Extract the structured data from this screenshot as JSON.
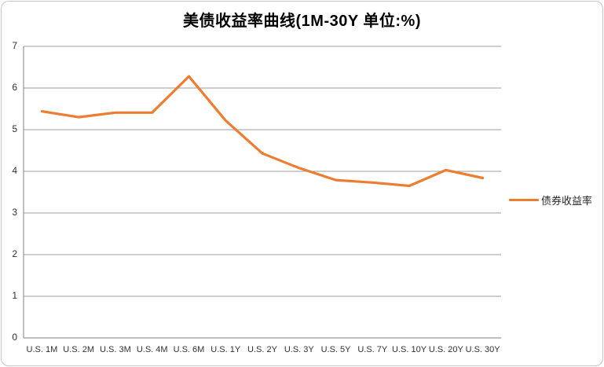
{
  "chart_data": {
    "type": "line",
    "title": "美债收益率曲线(1M-30Y 单位:%)",
    "categories": [
      "U.S. 1M",
      "U.S. 2M",
      "U.S. 3M",
      "U.S. 4M",
      "U.S. 6M",
      "U.S. 1Y",
      "U.S. 2Y",
      "U.S. 3Y",
      "U.S. 5Y",
      "U.S. 7Y",
      "U.S. 10Y",
      "U.S. 20Y",
      "U.S. 30Y"
    ],
    "series": [
      {
        "name": "债券收益率",
        "color": "#ED7D31",
        "values": [
          5.44,
          5.3,
          5.41,
          5.41,
          6.28,
          5.22,
          4.43,
          4.08,
          3.79,
          3.73,
          3.65,
          4.03,
          3.84
        ]
      }
    ],
    "ylim": [
      0,
      7
    ],
    "yticks": [
      0,
      1,
      2,
      3,
      4,
      5,
      6,
      7
    ],
    "grid": true,
    "legend_position": "right-middle",
    "xlabel": "",
    "ylabel": ""
  },
  "colors": {
    "gridline": "#9c9c9c",
    "axis_line": "#808080",
    "frame_border": "#c6c4c2",
    "label_text": "#303030",
    "title_text": "#000000",
    "background": "#ffffff"
  }
}
